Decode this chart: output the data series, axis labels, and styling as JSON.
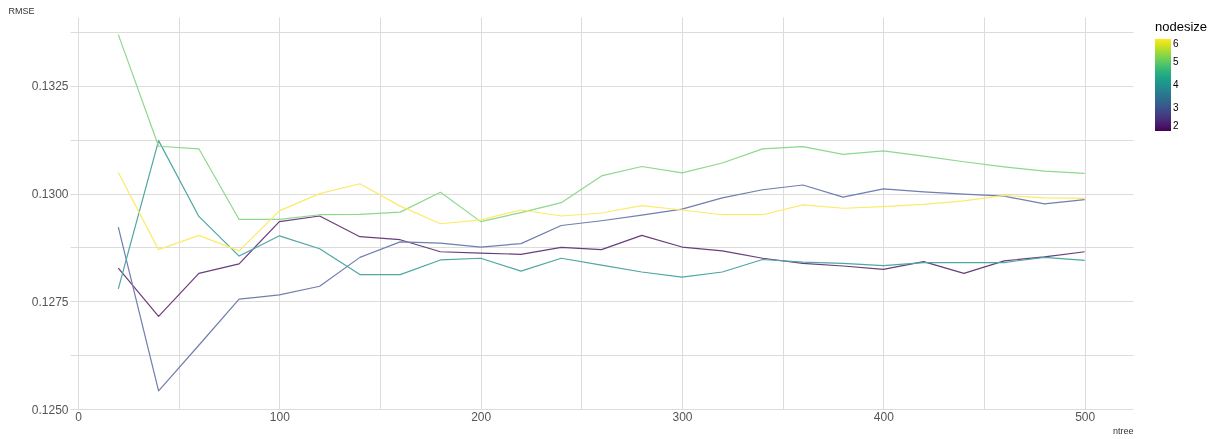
{
  "chart_data": {
    "type": "line",
    "xlabel": "ntree",
    "ylabel": "RMSE",
    "clabel": "nodesize",
    "clim": [
      2,
      6
    ],
    "cticks": [
      2,
      3,
      4,
      5,
      6
    ],
    "x": [
      20,
      40,
      60,
      80,
      100,
      120,
      140,
      160,
      180,
      200,
      220,
      240,
      260,
      280,
      300,
      320,
      340,
      360,
      380,
      400,
      420,
      440,
      460,
      480,
      500
    ],
    "xlim": [
      -4,
      524
    ],
    "ylim": [
      0.125,
      0.1341
    ],
    "xticks": [
      0,
      {
        "value": 50,
        "label": null
      },
      100,
      {
        "value": 150,
        "label": null
      },
      200,
      {
        "value": 250,
        "label": null
      },
      300,
      {
        "value": 350,
        "label": null
      },
      400,
      {
        "value": 450,
        "label": null
      },
      500
    ],
    "yticks": [
      {
        "value": 0.125,
        "label": "0.1250"
      },
      {
        "value": 0.12625,
        "label": null
      },
      {
        "value": 0.1275,
        "label": "0.1275"
      },
      {
        "value": 0.12875,
        "label": null
      },
      {
        "value": 0.13,
        "label": "0.1300"
      },
      {
        "value": 0.13125,
        "label": null
      },
      {
        "value": 0.1325,
        "label": "0.1325"
      },
      {
        "value": 0.13375,
        "label": null
      }
    ],
    "grid": true,
    "line_style": "solid",
    "series": [
      {
        "color": "#6a3d7c",
        "values": [
          0.12827,
          0.12715,
          0.12815,
          0.12837,
          0.12935,
          0.12948,
          0.129,
          0.12893,
          0.12865,
          0.12862,
          0.12859,
          0.12875,
          0.1287,
          0.12903,
          0.12876,
          0.12867,
          0.1285,
          0.12838,
          0.12832,
          0.12824,
          0.12842,
          0.12815,
          0.12844,
          0.12853,
          0.12865
        ]
      },
      {
        "color": "#6f7fae",
        "values": [
          0.12922,
          0.12542,
          0.12648,
          0.12755,
          0.12765,
          0.12785,
          0.12852,
          0.12888,
          0.12885,
          0.12876,
          0.12884,
          0.12926,
          0.12937,
          0.1295,
          0.12964,
          0.1299,
          0.13009,
          0.1302,
          0.12992,
          0.13011,
          0.13004,
          0.12999,
          0.12994,
          0.12976,
          0.12986
        ]
      },
      {
        "color": "#4fa6a3",
        "values": [
          0.12779,
          0.13123,
          0.12947,
          0.12855,
          0.12902,
          0.12872,
          0.12812,
          0.12812,
          0.12846,
          0.1285,
          0.1282,
          0.1285,
          0.12834,
          0.12818,
          0.12806,
          0.12818,
          0.12847,
          0.12841,
          0.12838,
          0.12833,
          0.1284,
          0.1284,
          0.1284,
          0.12852,
          0.12845
        ]
      },
      {
        "color": "#8ed88c",
        "values": [
          0.13369,
          0.1311,
          0.13104,
          0.1294,
          0.1294,
          0.12951,
          0.12952,
          0.12957,
          0.13003,
          0.12935,
          0.12956,
          0.12979,
          0.13041,
          0.13063,
          0.13048,
          0.13071,
          0.13104,
          0.13109,
          0.13091,
          0.13099,
          0.13087,
          0.13074,
          0.13062,
          0.13052,
          0.13047
        ]
      },
      {
        "color": "#fcea6a",
        "values": [
          0.13049,
          0.1287,
          0.12903,
          0.12867,
          0.1296,
          0.13,
          0.13023,
          0.12971,
          0.1293,
          0.12939,
          0.12962,
          0.12948,
          0.12955,
          0.12972,
          0.12962,
          0.12951,
          0.12951,
          0.12974,
          0.12966,
          0.1297,
          0.12975,
          0.12983,
          0.12996,
          0.1299,
          0.12989
        ]
      }
    ]
  }
}
